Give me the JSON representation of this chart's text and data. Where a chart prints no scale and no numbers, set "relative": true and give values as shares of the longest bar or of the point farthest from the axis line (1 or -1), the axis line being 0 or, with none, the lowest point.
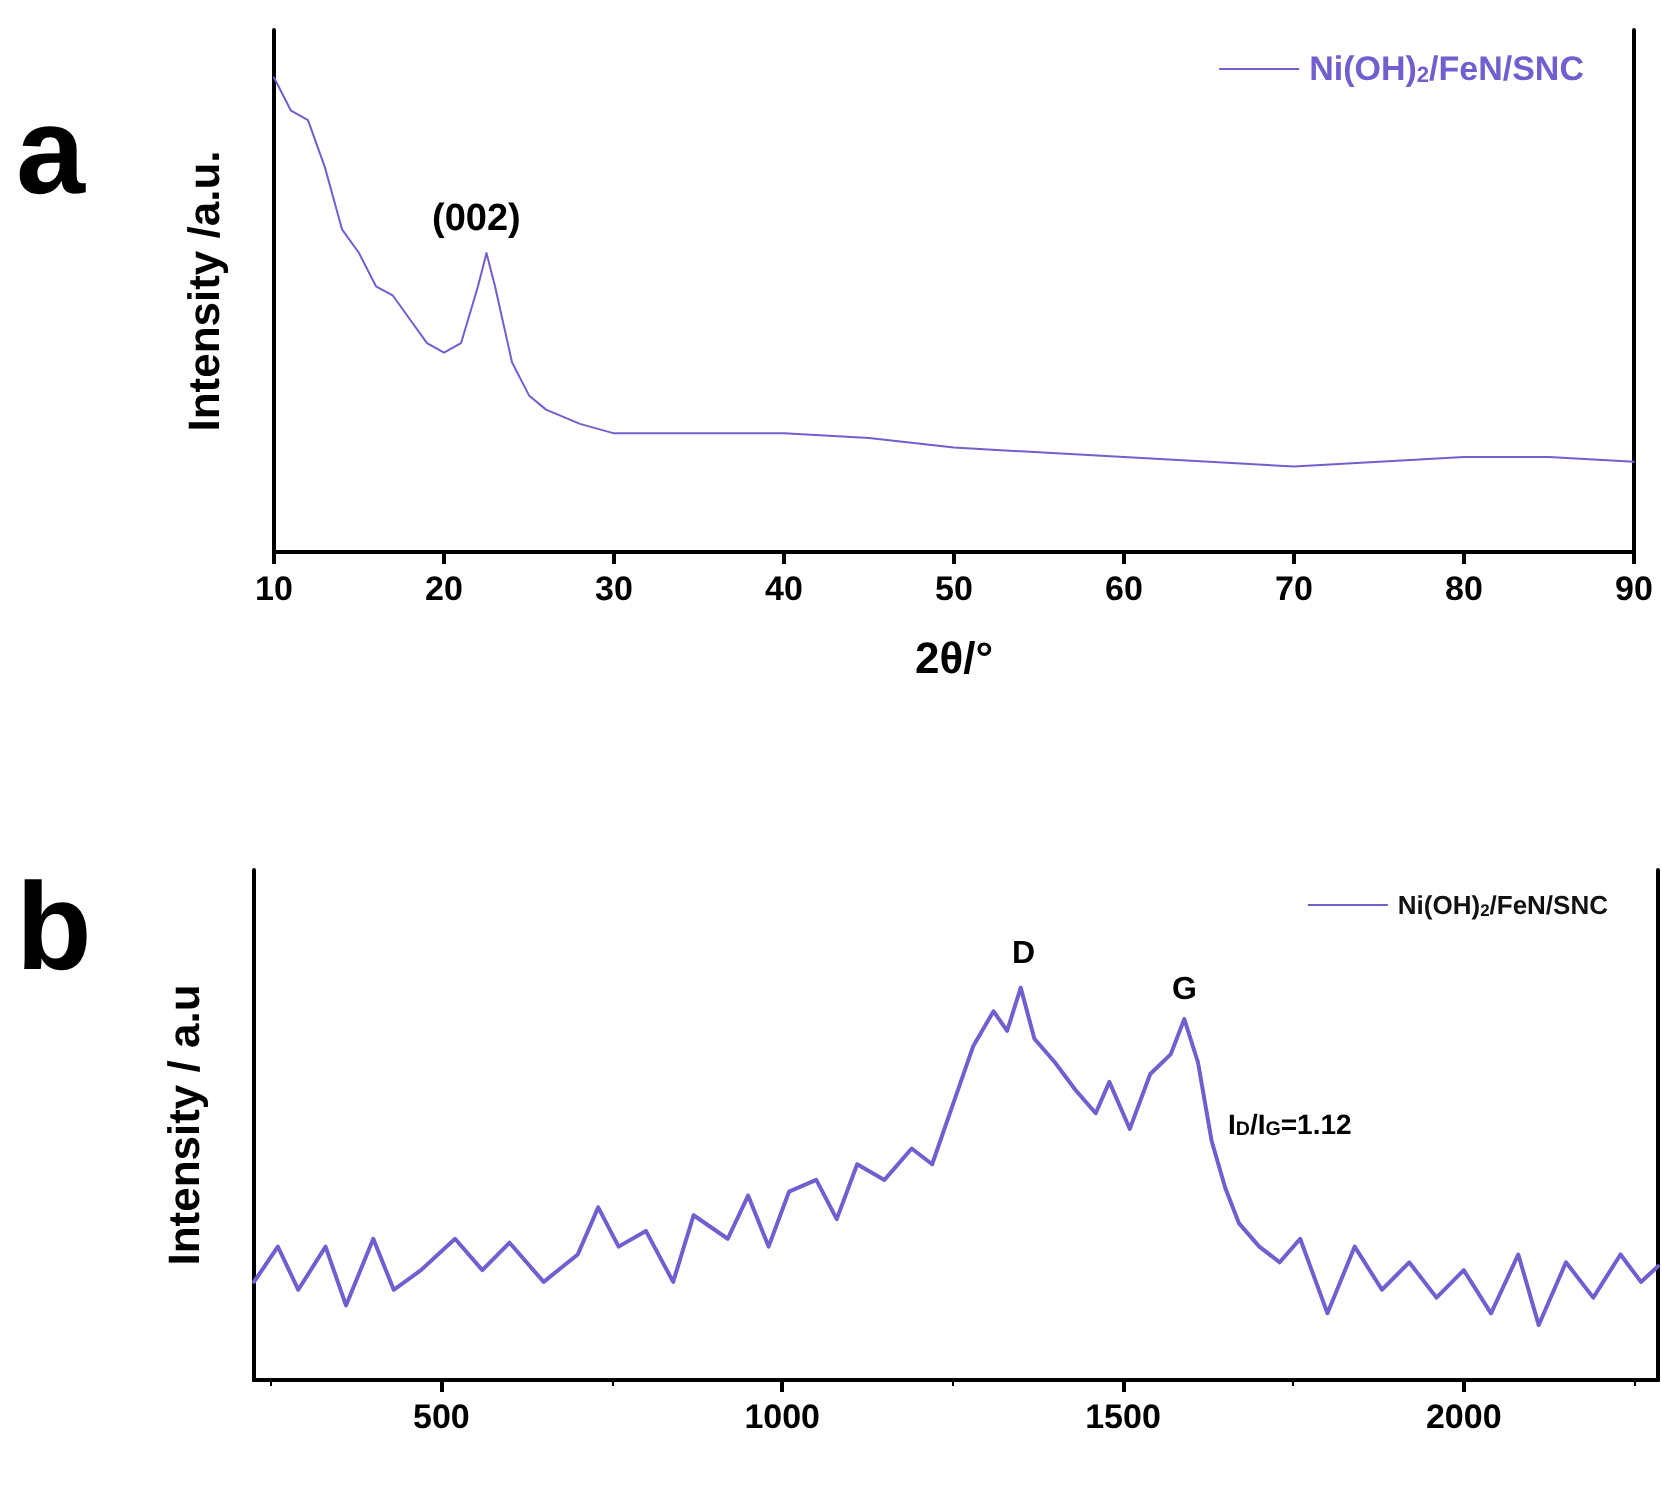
{
  "chart_data": [
    {
      "type": "line",
      "xlabel": "2θ/°",
      "ylabel": "Intensity /a.u.",
      "relative": true,
      "legend": "top right",
      "marker": "none",
      "line_style": "solid",
      "grid": false,
      "annotations": [
        "a",
        "(002)"
      ],
      "xlim": [
        10,
        90
      ],
      "xticks": [
        10,
        20,
        30,
        40,
        50,
        60,
        70,
        80,
        90
      ],
      "series": [
        {
          "name": "Ni(OH)$_{2}$/FeN/SNC",
          "color": "#6f5fcf",
          "x": [
            10,
            11,
            12,
            13,
            14,
            15,
            16,
            17,
            18,
            19,
            20,
            21,
            22,
            22.5,
            23,
            24,
            25,
            26,
            28,
            30,
            35,
            40,
            45,
            50,
            55,
            60,
            65,
            70,
            75,
            80,
            85,
            90
          ],
          "values": [
            1.0,
            0.93,
            0.91,
            0.81,
            0.68,
            0.63,
            0.56,
            0.54,
            0.49,
            0.44,
            0.42,
            0.44,
            0.56,
            0.63,
            0.56,
            0.4,
            0.33,
            0.3,
            0.27,
            0.25,
            0.25,
            0.25,
            0.24,
            0.22,
            0.21,
            0.2,
            0.19,
            0.18,
            0.19,
            0.2,
            0.2,
            0.19
          ]
        }
      ]
    },
    {
      "type": "line",
      "ylabel": "Intensity / a.u",
      "relative": true,
      "legend": "top right",
      "marker": "none",
      "line_style": "solid",
      "grid": false,
      "annotations": [
        "b",
        "D",
        "G",
        "I$_{D}$/I$_{G}$=1.12"
      ],
      "xlim": [
        225,
        2285
      ],
      "xticks": [
        500,
        1000,
        1500,
        2000
      ],
      "series": [
        {
          "name": "Ni(OH)$_{2}$/FeN/SNC",
          "color": "#6f5fcf",
          "x": [
            225,
            260,
            290,
            330,
            360,
            400,
            430,
            470,
            520,
            560,
            600,
            650,
            700,
            730,
            760,
            800,
            840,
            870,
            920,
            950,
            980,
            1010,
            1050,
            1080,
            1110,
            1150,
            1190,
            1220,
            1250,
            1280,
            1310,
            1330,
            1350,
            1370,
            1400,
            1430,
            1460,
            1480,
            1510,
            1540,
            1570,
            1590,
            1610,
            1630,
            1650,
            1670,
            1700,
            1730,
            1760,
            1800,
            1840,
            1880,
            1920,
            1960,
            2000,
            2040,
            2080,
            2110,
            2150,
            2190,
            2230,
            2260,
            2285
          ],
          "values": [
            0.25,
            0.34,
            0.23,
            0.34,
            0.19,
            0.36,
            0.23,
            0.28,
            0.36,
            0.28,
            0.35,
            0.25,
            0.32,
            0.44,
            0.34,
            0.38,
            0.25,
            0.42,
            0.36,
            0.47,
            0.34,
            0.48,
            0.51,
            0.41,
            0.55,
            0.51,
            0.59,
            0.55,
            0.7,
            0.85,
            0.94,
            0.89,
            1.0,
            0.87,
            0.81,
            0.74,
            0.68,
            0.76,
            0.64,
            0.78,
            0.83,
            0.92,
            0.81,
            0.61,
            0.49,
            0.4,
            0.34,
            0.3,
            0.36,
            0.17,
            0.34,
            0.23,
            0.3,
            0.21,
            0.28,
            0.17,
            0.32,
            0.14,
            0.3,
            0.21,
            0.32,
            0.25,
            0.29
          ]
        }
      ]
    }
  ]
}
